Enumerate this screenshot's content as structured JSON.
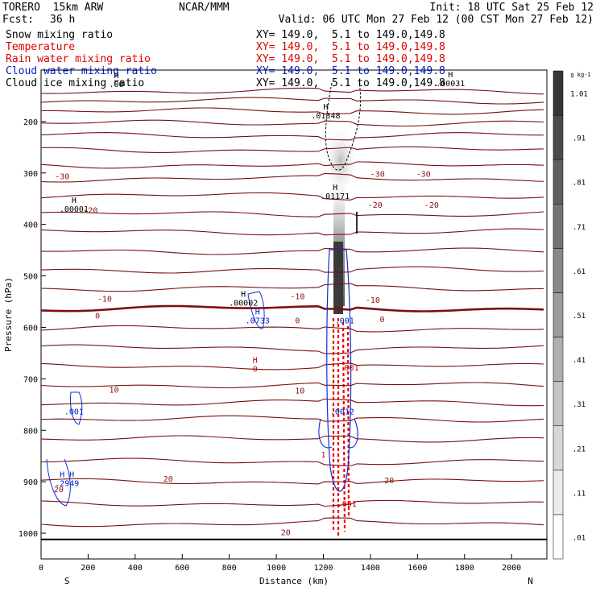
{
  "header": {
    "model": "TORERO  15km ARW",
    "center": "NCAR/MMM",
    "init": "Init: 18 UTC Sat 25 Feb 12",
    "fcst_label": "Fcst:",
    "fcst_value": "36 h",
    "valid": "Valid: 06 UTC Mon 27 Feb 12 (00 CST Mon 27 Feb 12)"
  },
  "fields": [
    {
      "name": "Snow mixing ratio",
      "xy": "XY= 149.0,  5.1 to 149.0,149.8",
      "color": "#000000"
    },
    {
      "name": "Temperature",
      "xy": "XY= 149.0,  5.1 to 149.0,149.8",
      "color": "#d00000"
    },
    {
      "name": "Rain water mixing ratio",
      "xy": "XY= 149.0,  5.1 to 149.0,149.8",
      "color": "#d00000"
    },
    {
      "name": "Cloud water mixing ratio",
      "xy": "XY= 149.0,  5.1 to 149.0,149.8",
      "color": "#0020c8"
    },
    {
      "name": "Cloud ice mixing ratio",
      "xy": "XY= 149.0,  5.1 to 149.0,149.8",
      "color": "#000000"
    }
  ],
  "chart_data": {
    "type": "contour",
    "xlabel": "Distance (km)",
    "ylabel": "Pressure (hPa)",
    "xlim": [
      0,
      2150
    ],
    "ylim": [
      1050,
      100
    ],
    "x_ticks": [
      0,
      200,
      400,
      600,
      800,
      1000,
      1200,
      1400,
      1600,
      1800,
      2000
    ],
    "y_ticks": [
      200,
      300,
      400,
      500,
      600,
      700,
      800,
      900,
      1000
    ],
    "x_end_labels": {
      "left": "S",
      "right": "N"
    },
    "colorbar": {
      "unit": "g kg-1",
      "ticks": [
        ".01",
        ".11",
        ".21",
        ".31",
        ".41",
        ".51",
        ".61",
        ".71",
        ".81",
        ".91",
        "1.01"
      ]
    },
    "temperature_contour_labels": [
      {
        "x": 90,
        "p": 312,
        "text": "-30"
      },
      {
        "x": 1430,
        "p": 307,
        "text": "-30"
      },
      {
        "x": 1625,
        "p": 307,
        "text": "-30"
      },
      {
        "x": 210,
        "p": 378,
        "text": "-20"
      },
      {
        "x": 1420,
        "p": 368,
        "text": "-20"
      },
      {
        "x": 1660,
        "p": 368,
        "text": "-20"
      },
      {
        "x": 270,
        "p": 550,
        "text": "-10"
      },
      {
        "x": 1090,
        "p": 545,
        "text": "-10"
      },
      {
        "x": 1410,
        "p": 552,
        "text": "-10"
      },
      {
        "x": 240,
        "p": 583,
        "text": "0"
      },
      {
        "x": 1090,
        "p": 592,
        "text": "0"
      },
      {
        "x": 1450,
        "p": 590,
        "text": "0"
      },
      {
        "x": 310,
        "p": 727,
        "text": "10"
      },
      {
        "x": 1100,
        "p": 728,
        "text": "10"
      },
      {
        "x": 540,
        "p": 900,
        "text": "20"
      },
      {
        "x": 1480,
        "p": 903,
        "text": "20"
      },
      {
        "x": 75,
        "p": 920,
        "text": "20"
      },
      {
        "x": 1040,
        "p": 1004,
        "text": "20"
      }
    ],
    "extrema_labels": [
      {
        "x": 320,
        "p": 130,
        "mark": "H",
        "value": ".00",
        "color": "#000000"
      },
      {
        "x": 1210,
        "p": 191,
        "mark": "H",
        "value": ".01348",
        "color": "#000000"
      },
      {
        "x": 1740,
        "p": 128,
        "mark": "H",
        "value": ".00031",
        "color": "#000000"
      },
      {
        "x": 140,
        "p": 372,
        "mark": "H",
        "value": ".00001",
        "color": "#000000"
      },
      {
        "x": 1250,
        "p": 347,
        "mark": "H",
        "value": ".01171",
        "color": "#000000"
      },
      {
        "x": 860,
        "p": 555,
        "mark": "H",
        "value": ".00002",
        "color": "#000000"
      },
      {
        "x": 920,
        "p": 589,
        "mark": "H",
        "value": ".0733",
        "color": "#0020c8"
      },
      {
        "x": 1290,
        "p": 589,
        "mark": "",
        "value": ".001",
        "color": "#0020c8"
      },
      {
        "x": 910,
        "p": 683,
        "mark": "H",
        "value": "0",
        "color": "#d00000"
      },
      {
        "x": 1320,
        "p": 681,
        "mark": "",
        "value": "001",
        "color": "#d00000"
      },
      {
        "x": 140,
        "p": 766,
        "mark": "",
        "value": ".001",
        "color": "#0020c8"
      },
      {
        "x": 1280,
        "p": 766,
        "mark": "",
        "value": ".0012",
        "color": "#0020c8"
      },
      {
        "x": 110,
        "p": 905,
        "mark": "H H",
        "value": ".2949",
        "color": "#0020c8"
      },
      {
        "x": 1300,
        "p": 945,
        "mark": "",
        "value": ".001",
        "color": "#d00000"
      },
      {
        "x": 1200,
        "p": 850,
        "mark": "",
        "value": "1",
        "color": "#d00000"
      }
    ]
  }
}
